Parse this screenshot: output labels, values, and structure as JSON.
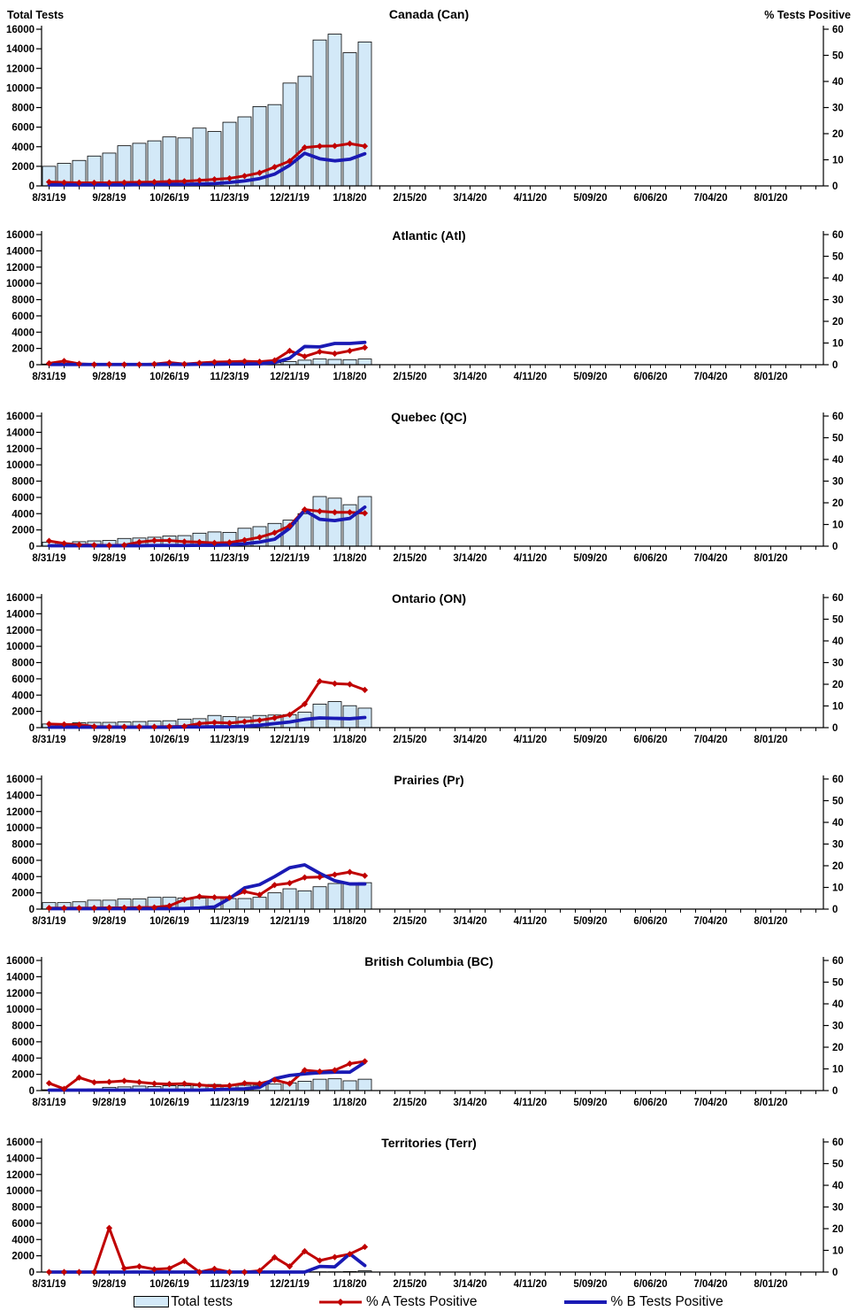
{
  "axes": {
    "left_label": "Total Tests",
    "right_label": "% Tests Positive",
    "left_ticks": [
      0,
      2000,
      4000,
      6000,
      8000,
      10000,
      12000,
      14000,
      16000
    ],
    "left_max": 16000,
    "right_ticks": [
      0,
      10,
      20,
      30,
      40,
      50,
      60
    ],
    "right_max": 60,
    "x_labels": [
      "8/31/19",
      "9/28/19",
      "10/26/19",
      "11/23/19",
      "12/21/19",
      "1/18/20",
      "2/15/20",
      "3/14/20",
      "4/11/20",
      "5/09/20",
      "6/06/20",
      "7/04/20",
      "8/01/20"
    ],
    "x_label_every_n_weeks": 4,
    "weeks_shown": 52
  },
  "legend": {
    "items": [
      {
        "key": "total_tests",
        "label": "Total tests",
        "swatch": "bar"
      },
      {
        "key": "pct_a_positive",
        "label": "% A Tests Positive",
        "swatch": "line-diamond"
      },
      {
        "key": "pct_b_positive",
        "label": "% B Tests Positive",
        "swatch": "line"
      }
    ]
  },
  "colors": {
    "bar_fill": "#D3E9F8",
    "bar_stroke": "#000000",
    "series_a": "#C00000",
    "series_b": "#1A1AB4",
    "axis": "#000000",
    "text": "#000000"
  },
  "chart_data": {
    "type": "bar+line",
    "x": [
      "8/31/19",
      "9/07/19",
      "9/14/19",
      "9/21/19",
      "9/28/19",
      "10/05/19",
      "10/12/19",
      "10/19/19",
      "10/26/19",
      "11/02/19",
      "11/09/19",
      "11/16/19",
      "11/23/19",
      "11/30/19",
      "12/07/19",
      "12/14/19",
      "12/21/19",
      "12/28/19",
      "1/04/20",
      "1/11/20",
      "1/18/20",
      "1/25/20"
    ],
    "left_axis_series": "total_tests",
    "right_axis_series": [
      "pct_a_positive",
      "pct_b_positive"
    ],
    "panels": [
      {
        "title": "Canada (Can)",
        "total_tests": [
          2000,
          2300,
          2600,
          3050,
          3350,
          4100,
          4350,
          4600,
          5000,
          4900,
          5900,
          5550,
          6500,
          7050,
          8100,
          8300,
          10500,
          11200,
          14900,
          15500,
          13600,
          14700
        ],
        "pct_a_positive": [
          1.5,
          1.3,
          1.2,
          1.2,
          1.2,
          1.3,
          1.4,
          1.5,
          1.7,
          1.8,
          2.1,
          2.5,
          2.9,
          3.8,
          5.0,
          7.2,
          9.5,
          14.7,
          15.2,
          15.3,
          16.2,
          15.2
        ],
        "pct_b_positive": [
          0.4,
          0.4,
          0.4,
          0.4,
          0.4,
          0.4,
          0.5,
          0.5,
          0.6,
          0.6,
          0.7,
          0.9,
          1.3,
          1.9,
          2.8,
          4.5,
          7.9,
          12.5,
          10.4,
          9.6,
          10.2,
          12.3
        ]
      },
      {
        "title": "Atlantic (Atl)",
        "total_tests": [
          80,
          100,
          80,
          60,
          60,
          60,
          80,
          80,
          100,
          80,
          100,
          120,
          120,
          150,
          180,
          250,
          380,
          560,
          700,
          650,
          620,
          700
        ],
        "pct_a_positive": [
          0.6,
          1.7,
          0.4,
          0.1,
          0.2,
          0.1,
          0.1,
          0.3,
          1.0,
          0.3,
          0.8,
          1.2,
          1.4,
          1.6,
          1.4,
          2.0,
          6.4,
          3.8,
          6.0,
          5.1,
          6.4,
          7.9
        ],
        "pct_b_positive": [
          0.1,
          0.1,
          0.1,
          0.1,
          0.1,
          0.1,
          0.1,
          0.1,
          0.2,
          0.1,
          0.2,
          0.2,
          0.3,
          0.3,
          0.4,
          1.0,
          3.0,
          8.4,
          8.2,
          9.8,
          9.8,
          10.3
        ]
      },
      {
        "title": "Quebec (QC)",
        "total_tests": [
          500,
          400,
          550,
          650,
          700,
          950,
          1000,
          1100,
          1250,
          1300,
          1600,
          1750,
          1700,
          2200,
          2400,
          2800,
          3200,
          4000,
          6100,
          5900,
          5100,
          6100
        ],
        "pct_a_positive": [
          2.4,
          1.3,
          0.6,
          0.5,
          0.4,
          0.5,
          1.9,
          2.6,
          2.6,
          2.1,
          1.9,
          1.5,
          1.7,
          2.8,
          4.1,
          6.2,
          9.4,
          16.9,
          16.1,
          15.6,
          15.6,
          15.2
        ],
        "pct_b_positive": [
          0.2,
          0.2,
          0.2,
          0.2,
          0.2,
          0.2,
          0.2,
          0.3,
          0.3,
          0.3,
          0.4,
          0.4,
          0.6,
          1.1,
          1.9,
          3.2,
          8.3,
          16.5,
          12.4,
          11.8,
          12.8,
          18.0
        ]
      },
      {
        "title": "Ontario (ON)",
        "total_tests": [
          450,
          450,
          600,
          650,
          650,
          700,
          750,
          800,
          850,
          1050,
          1100,
          1500,
          1350,
          1300,
          1500,
          1550,
          1600,
          1900,
          2900,
          3200,
          2700,
          2400
        ],
        "pct_a_positive": [
          1.7,
          1.5,
          1.4,
          0.5,
          0.4,
          0.4,
          0.4,
          0.4,
          0.5,
          0.6,
          1.9,
          2.4,
          2.1,
          2.8,
          3.4,
          4.5,
          6.0,
          10.9,
          21.4,
          20.3,
          20.0,
          17.4
        ],
        "pct_b_positive": [
          0.2,
          0.2,
          0.2,
          0.2,
          0.2,
          0.2,
          0.2,
          0.2,
          0.2,
          0.3,
          0.3,
          0.4,
          0.4,
          0.6,
          1.1,
          1.9,
          2.6,
          3.8,
          4.5,
          4.3,
          4.1,
          4.7
        ]
      },
      {
        "title": "Prairies (Pr)",
        "total_tests": [
          800,
          800,
          900,
          1100,
          1100,
          1250,
          1250,
          1450,
          1450,
          1350,
          1350,
          1450,
          1300,
          1300,
          1450,
          2000,
          2500,
          2250,
          2750,
          3150,
          3100,
          3250
        ],
        "pct_a_positive": [
          0.5,
          0.5,
          0.5,
          0.5,
          0.6,
          0.6,
          0.7,
          0.8,
          1.5,
          4.4,
          5.8,
          5.4,
          5.3,
          8.1,
          6.6,
          11.1,
          12.0,
          14.6,
          14.8,
          15.9,
          17.1,
          15.4
        ],
        "pct_b_positive": [
          0.2,
          0.2,
          0.2,
          0.2,
          0.2,
          0.2,
          0.2,
          0.2,
          0.2,
          0.3,
          0.5,
          1.0,
          4.9,
          9.8,
          11.3,
          15.0,
          19.1,
          20.4,
          16.5,
          13.1,
          11.6,
          11.6
        ]
      },
      {
        "title": "British Columbia (BC)",
        "total_tests": [
          100,
          100,
          150,
          200,
          400,
          450,
          550,
          500,
          600,
          600,
          600,
          750,
          650,
          650,
          650,
          800,
          950,
          1150,
          1400,
          1450,
          1200,
          1400
        ],
        "pct_a_positive": [
          3.4,
          0.8,
          6.0,
          3.8,
          4.0,
          4.5,
          3.9,
          3.2,
          3.0,
          3.2,
          2.6,
          2.1,
          2.3,
          3.4,
          3.2,
          4.9,
          3.2,
          9.4,
          8.8,
          9.4,
          12.4,
          13.5
        ],
        "pct_b_positive": [
          0.2,
          0.2,
          0.2,
          0.2,
          0.2,
          0.2,
          0.2,
          0.2,
          0.2,
          0.2,
          0.2,
          0.4,
          0.6,
          0.8,
          1.5,
          5.5,
          7.0,
          7.7,
          8.2,
          8.5,
          8.5,
          13.0
        ]
      },
      {
        "title": "Territories (Terr)",
        "total_tests": [
          0,
          0,
          0,
          0,
          0,
          0,
          0,
          0,
          0,
          0,
          0,
          0,
          0,
          0,
          0,
          0,
          0,
          0,
          30,
          30,
          60,
          150
        ],
        "pct_a_positive": [
          0,
          0,
          0,
          0,
          20.3,
          1.7,
          2.6,
          1.3,
          1.7,
          5.1,
          0,
          1.5,
          0,
          0,
          0.6,
          6.8,
          2.6,
          9.6,
          5.3,
          6.9,
          8.3,
          11.6
        ],
        "pct_b_positive": [
          0,
          0,
          0,
          0,
          0,
          0,
          0,
          0,
          0,
          0,
          0,
          0,
          0,
          0,
          0,
          0,
          0,
          0,
          2.6,
          2.4,
          8.4,
          3.0
        ]
      }
    ]
  }
}
